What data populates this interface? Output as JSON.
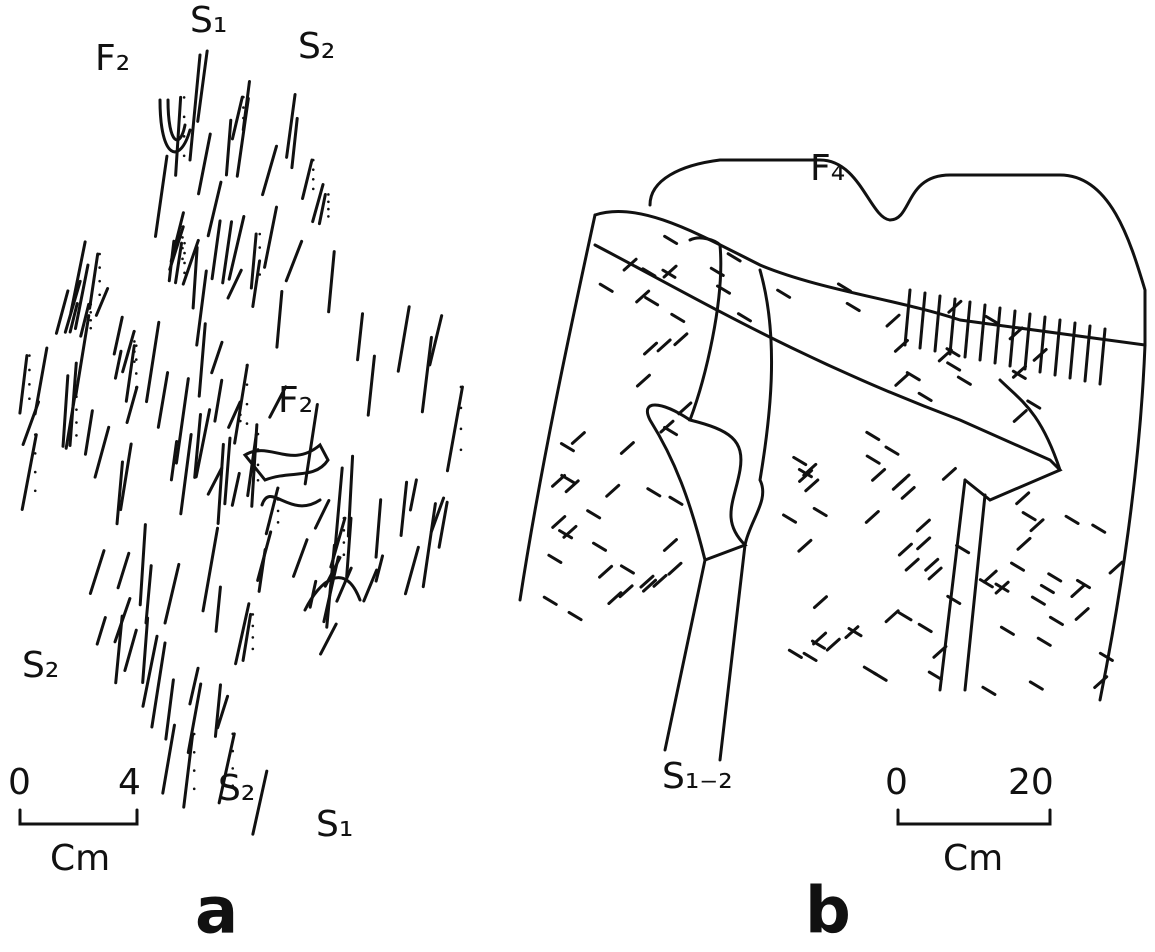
{
  "panel_a": {
    "labels": [
      "F₂",
      "S₁",
      "S₂",
      "F₂",
      "S₂",
      "S₂",
      "S₁"
    ],
    "scale": {
      "start": 0,
      "end": 4,
      "unit": "Cm"
    },
    "caption": "a"
  },
  "panel_b": {
    "labels": [
      "F₄",
      "S₁₋₂"
    ],
    "scale": {
      "start": 0,
      "end": 20,
      "unit": "Cm"
    },
    "caption": "b"
  }
}
